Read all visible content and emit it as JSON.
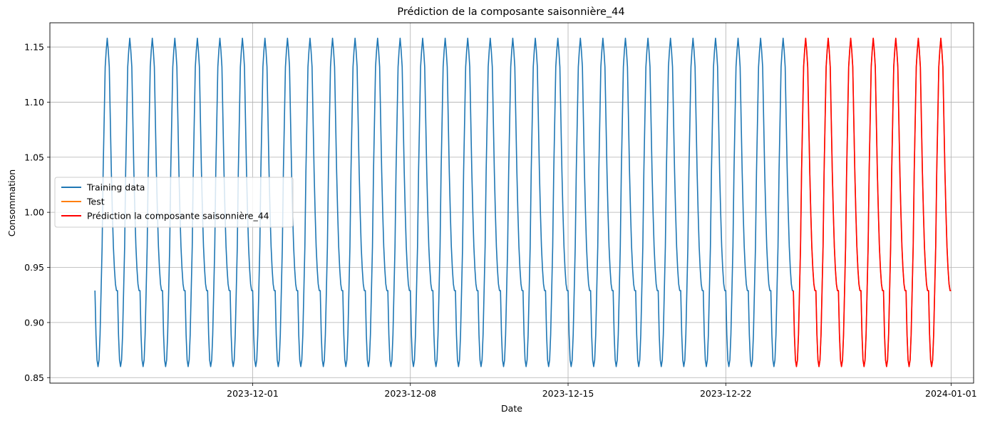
{
  "chart_data": {
    "type": "line",
    "title": "Prédiction de la composante saisonnière_44",
    "xlabel": "Date",
    "ylabel": "Consommation",
    "x_range": [
      "2023-11-22",
      "2024-01-02"
    ],
    "ylim": [
      0.845,
      1.172
    ],
    "x_ticks": [
      "2023-12-01",
      "2023-12-08",
      "2023-12-15",
      "2023-12-22",
      "2024-01-01"
    ],
    "y_ticks": [
      "0.85",
      "0.90",
      "0.95",
      "1.00",
      "1.05",
      "1.10",
      "1.15"
    ],
    "grid": true,
    "legend_position": "center-left",
    "daily_pattern_values": [
      0.929,
      0.889,
      0.866,
      0.86,
      0.866,
      0.889,
      0.929,
      0.969,
      1.037,
      1.084,
      1.132,
      1.147,
      1.158,
      1.147,
      1.132,
      1.084,
      1.037,
      1.0,
      0.969,
      0.949,
      0.935,
      0.929
    ],
    "series": [
      {
        "name": "Training data",
        "color": "#1f77b4",
        "start": "2023-11-24T00:00",
        "end": "2023-12-25T00:00",
        "pattern": "daily",
        "min": 0.86,
        "max": 1.158
      },
      {
        "name": "Test",
        "color": "#ff7f0e",
        "start": "2023-12-25T00:00",
        "end": "2024-01-01T00:00",
        "pattern": "daily",
        "min": 0.86,
        "max": 1.158
      },
      {
        "name": "Prédiction la composante saisonnière_44",
        "color": "#ff0000",
        "start": "2023-12-25T00:00",
        "end": "2024-01-01T00:00",
        "pattern": "daily",
        "min": 0.86,
        "max": 1.158
      }
    ]
  }
}
